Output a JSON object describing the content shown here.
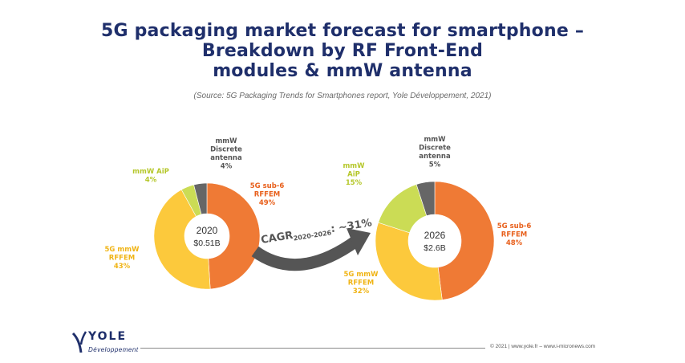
{
  "title_lines": [
    "5G packaging market forecast for smartphone –",
    "Breakdown by RF Front-End",
    "modules & mmW antenna"
  ],
  "source": "(Source: 5G Packaging Trends for Smartphones report, Yole Développement, 2021)",
  "chart_data": [
    {
      "type": "pie",
      "center_year": "2020",
      "center_value": "$0.51B",
      "slices": [
        {
          "name": [
            "5G sub-6",
            "RFFEM"
          ],
          "value": 49,
          "label": "49%",
          "color": "#ef7a35",
          "label_color": "#e8601c"
        },
        {
          "name": [
            "5G mmW",
            "RFFEM"
          ],
          "value": 43,
          "label": "43%",
          "color": "#fcc93c",
          "label_color": "#f0b415"
        },
        {
          "name": [
            "mmW AiP"
          ],
          "value": 4,
          "label": "4%",
          "color": "#cbdc55",
          "label_color": "#b5c72a"
        },
        {
          "name": [
            "mmW",
            "Discrete",
            "antenna"
          ],
          "value": 4,
          "label": "4%",
          "color": "#666666",
          "label_color": "#555555"
        }
      ]
    },
    {
      "type": "pie",
      "center_year": "2026",
      "center_value": "$2.6B",
      "slices": [
        {
          "name": [
            "5G sub-6",
            "RFFEM"
          ],
          "value": 48,
          "label": "48%",
          "color": "#ef7a35",
          "label_color": "#e8601c"
        },
        {
          "name": [
            "5G mmW",
            "RFFEM"
          ],
          "value": 32,
          "label": "32%",
          "color": "#fcc93c",
          "label_color": "#f0b415"
        },
        {
          "name": [
            "mmW",
            "AiP"
          ],
          "value": 15,
          "label": "15%",
          "color": "#cbdc55",
          "label_color": "#b5c72a"
        },
        {
          "name": [
            "mmW",
            "Discrete",
            "antenna"
          ],
          "value": 5,
          "label": "5%",
          "color": "#666666",
          "label_color": "#555555"
        }
      ]
    }
  ],
  "cagr": {
    "prefix": "CAGR",
    "subscript": "2020-2026",
    "suffix": ": ~31%",
    "color": "#555555"
  },
  "footer": {
    "logo_word": "YOLE",
    "logo_sub": "Développement",
    "text": "© 2021 | www.yole.fr – www.i-micronews.com"
  },
  "colors": {
    "title": "#1f2f6b"
  }
}
